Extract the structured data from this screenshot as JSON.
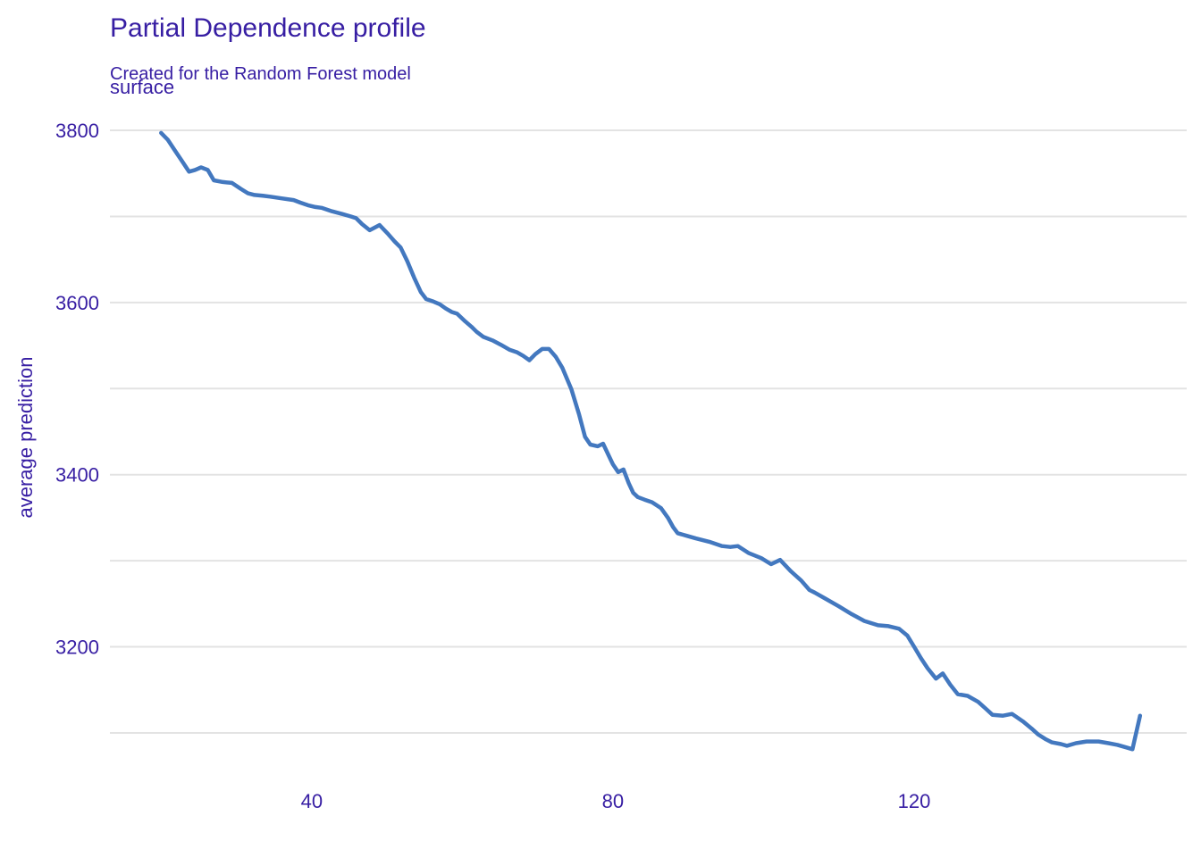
{
  "chart_data": {
    "type": "line",
    "title": "Partial Dependence profile",
    "subtitle": "Created for the Random Forest model",
    "facet_label": "surface",
    "xlabel": "",
    "ylabel": "average prediction",
    "legend_position": "none",
    "grid": "horizontal-only",
    "x_ticks": [
      40,
      80,
      120
    ],
    "y_ticks": [
      3200,
      3400,
      3600,
      3800
    ],
    "y_gridlines": [
      3100,
      3200,
      3300,
      3400,
      3500,
      3600,
      3700,
      3800
    ],
    "xlim": [
      13.2,
      156.2
    ],
    "ylim": [
      3059.5,
      3832.2
    ],
    "colors": {
      "line": "#4378bf",
      "text": "#371ea3",
      "grid": "#e3e3e3",
      "background": "#ffffff"
    },
    "series": [
      {
        "name": "Random Forest",
        "points": [
          [
            20.0,
            3797
          ],
          [
            20.9,
            3789
          ],
          [
            21.8,
            3777
          ],
          [
            22.8,
            3764
          ],
          [
            23.7,
            3752
          ],
          [
            24.5,
            3754
          ],
          [
            25.3,
            3757
          ],
          [
            26.2,
            3754
          ],
          [
            27.0,
            3742
          ],
          [
            28.2,
            3740
          ],
          [
            29.4,
            3739
          ],
          [
            30.6,
            3732
          ],
          [
            31.5,
            3727
          ],
          [
            32.4,
            3725
          ],
          [
            33.5,
            3724
          ],
          [
            34.5,
            3723
          ],
          [
            36.0,
            3721
          ],
          [
            37.6,
            3719
          ],
          [
            38.5,
            3716
          ],
          [
            39.5,
            3713
          ],
          [
            40.5,
            3711
          ],
          [
            41.3,
            3710
          ],
          [
            42.7,
            3706
          ],
          [
            44.0,
            3703
          ],
          [
            45.2,
            3700
          ],
          [
            45.9,
            3698
          ],
          [
            46.7,
            3691
          ],
          [
            47.7,
            3684
          ],
          [
            49.0,
            3690
          ],
          [
            50.1,
            3680
          ],
          [
            51.0,
            3671
          ],
          [
            51.8,
            3664
          ],
          [
            52.7,
            3648
          ],
          [
            53.6,
            3629
          ],
          [
            54.5,
            3612
          ],
          [
            55.2,
            3604
          ],
          [
            56.2,
            3601
          ],
          [
            57.0,
            3598
          ],
          [
            57.8,
            3593
          ],
          [
            58.6,
            3589
          ],
          [
            59.3,
            3587
          ],
          [
            60.4,
            3578
          ],
          [
            61.2,
            3572
          ],
          [
            61.9,
            3566
          ],
          [
            62.8,
            3560
          ],
          [
            64.0,
            3556
          ],
          [
            65.1,
            3551
          ],
          [
            66.3,
            3545
          ],
          [
            67.3,
            3542
          ],
          [
            68.1,
            3538
          ],
          [
            68.9,
            3533
          ],
          [
            69.7,
            3540
          ],
          [
            70.6,
            3546
          ],
          [
            71.5,
            3546
          ],
          [
            72.4,
            3537
          ],
          [
            73.3,
            3524
          ],
          [
            74.5,
            3499
          ],
          [
            75.5,
            3470
          ],
          [
            76.3,
            3444
          ],
          [
            77.0,
            3435
          ],
          [
            78.0,
            3433
          ],
          [
            78.7,
            3436
          ],
          [
            79.4,
            3423
          ],
          [
            80.0,
            3412
          ],
          [
            80.7,
            3403
          ],
          [
            81.4,
            3406
          ],
          [
            82.1,
            3390
          ],
          [
            82.7,
            3379
          ],
          [
            83.3,
            3374
          ],
          [
            84.2,
            3371
          ],
          [
            85.2,
            3368
          ],
          [
            86.4,
            3361
          ],
          [
            87.3,
            3350
          ],
          [
            88.0,
            3339
          ],
          [
            88.6,
            3332
          ],
          [
            89.8,
            3329
          ],
          [
            91.0,
            3326
          ],
          [
            92.8,
            3322
          ],
          [
            94.5,
            3317
          ],
          [
            95.6,
            3316
          ],
          [
            96.6,
            3317
          ],
          [
            98.0,
            3309
          ],
          [
            99.7,
            3303
          ],
          [
            101.0,
            3296
          ],
          [
            102.2,
            3301
          ],
          [
            103.6,
            3288
          ],
          [
            105.0,
            3277
          ],
          [
            106.1,
            3266
          ],
          [
            106.8,
            3263
          ],
          [
            108.2,
            3256
          ],
          [
            110.0,
            3247
          ],
          [
            111.7,
            3238
          ],
          [
            113.4,
            3230
          ],
          [
            115.2,
            3225
          ],
          [
            116.6,
            3224
          ],
          [
            118.0,
            3221
          ],
          [
            119.1,
            3213
          ],
          [
            120.0,
            3200
          ],
          [
            120.9,
            3187
          ],
          [
            121.8,
            3175
          ],
          [
            122.9,
            3163
          ],
          [
            123.8,
            3169
          ],
          [
            124.8,
            3156
          ],
          [
            125.8,
            3145
          ],
          [
            127.1,
            3143
          ],
          [
            128.5,
            3136
          ],
          [
            129.4,
            3129
          ],
          [
            130.4,
            3121
          ],
          [
            131.8,
            3120
          ],
          [
            133.0,
            3122
          ],
          [
            134.5,
            3113
          ],
          [
            135.6,
            3105
          ],
          [
            136.5,
            3098
          ],
          [
            137.4,
            3093
          ],
          [
            138.3,
            3089
          ],
          [
            139.5,
            3087
          ],
          [
            140.3,
            3085
          ],
          [
            141.5,
            3088
          ],
          [
            142.9,
            3090
          ],
          [
            144.5,
            3090
          ],
          [
            145.8,
            3088
          ],
          [
            147.0,
            3086
          ],
          [
            148.2,
            3083
          ],
          [
            149.0,
            3081
          ],
          [
            150.0,
            3120
          ]
        ]
      }
    ]
  }
}
